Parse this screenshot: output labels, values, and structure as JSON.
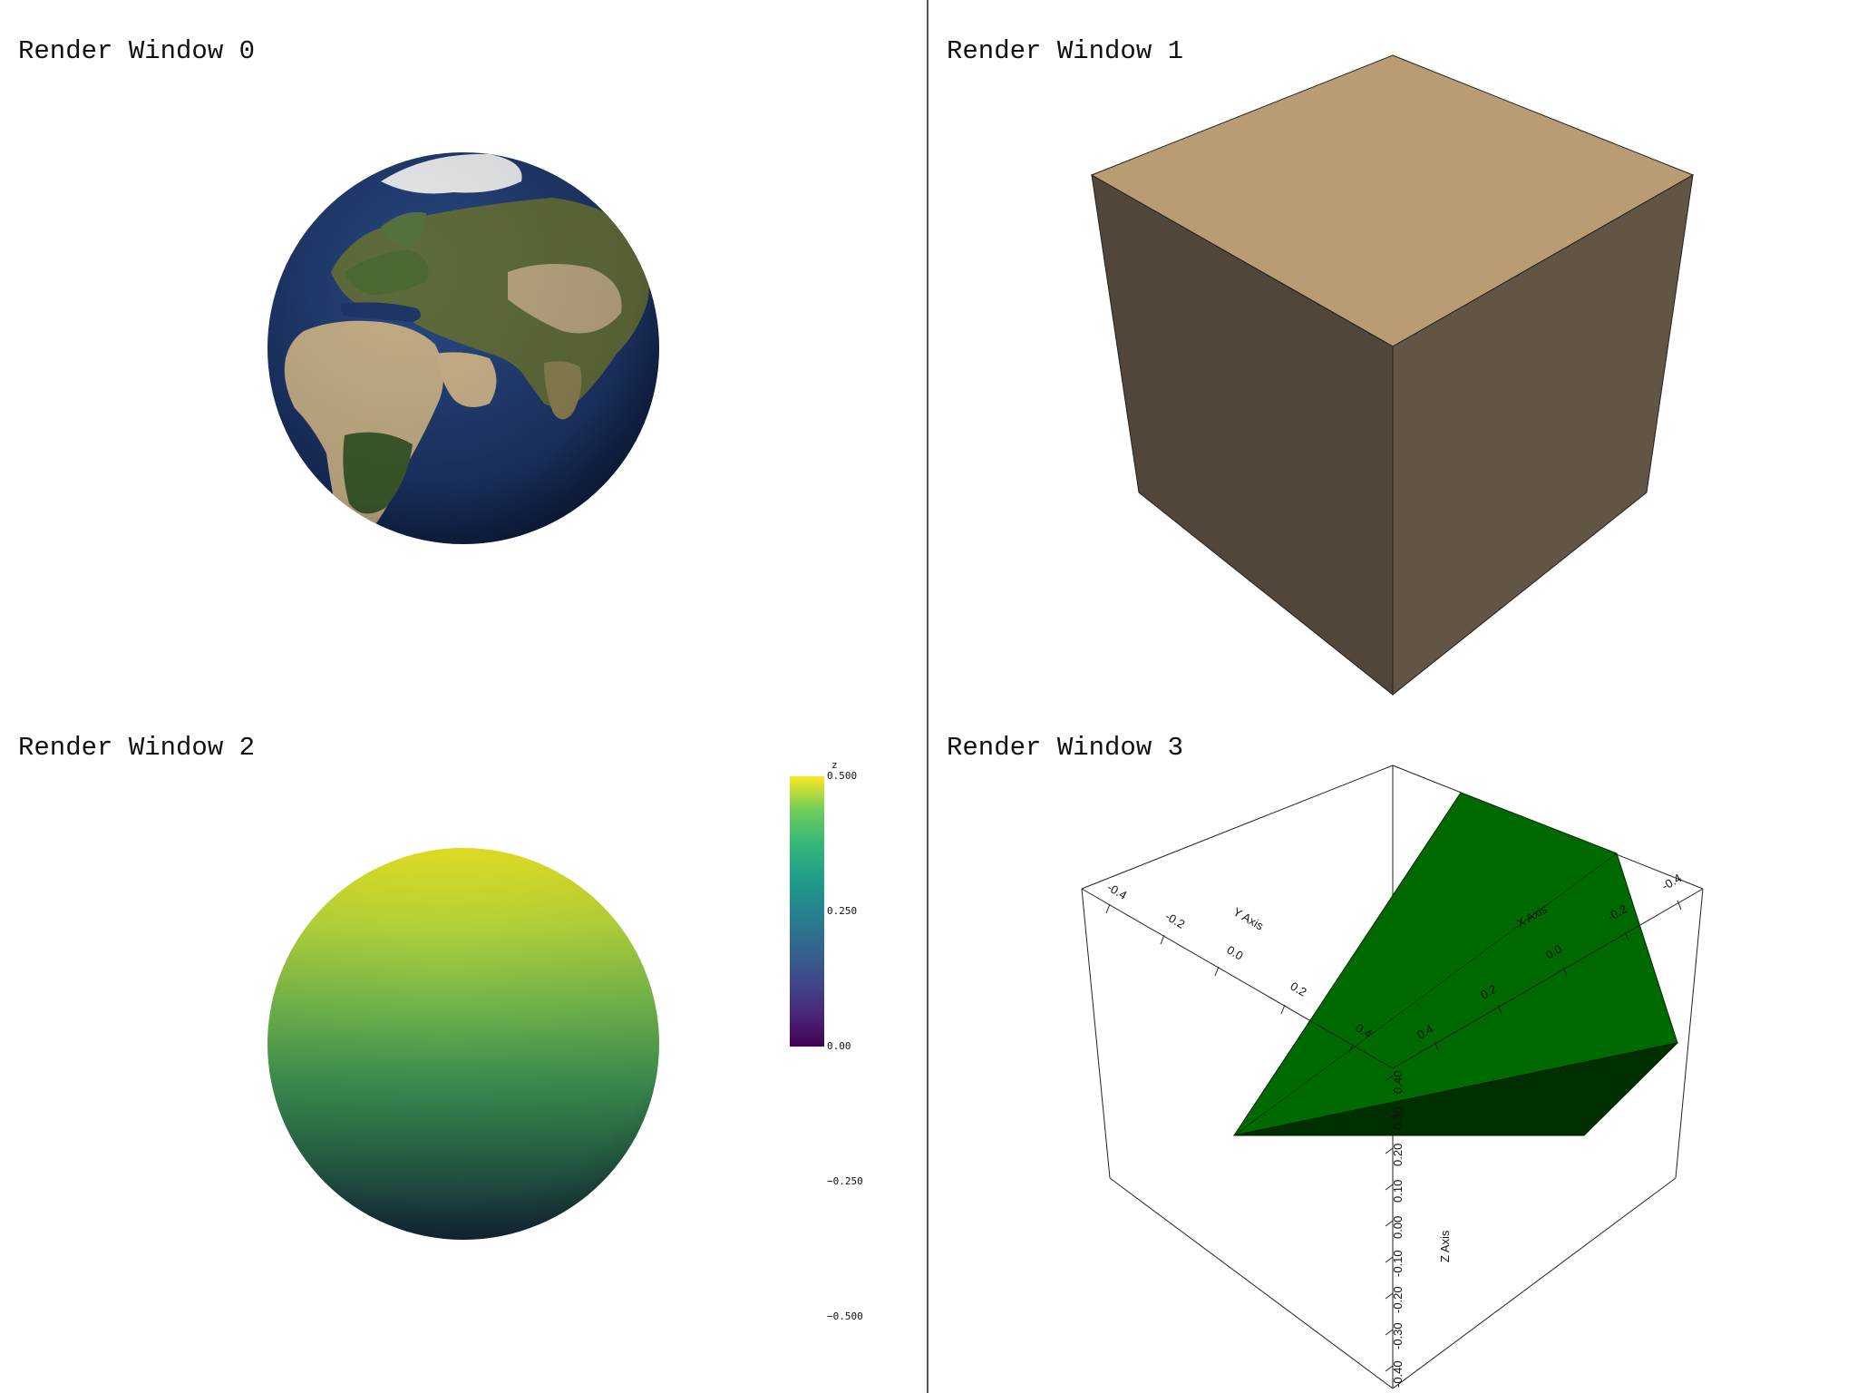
{
  "viewports": [
    {
      "title": "Render Window 0"
    },
    {
      "title": "Render Window 1"
    },
    {
      "title": "Render Window 2"
    },
    {
      "title": "Render Window 3"
    }
  ],
  "colorbar": {
    "title": "z",
    "ticks": [
      "0.500",
      "0.250",
      "0.00",
      "−0.250",
      "−0.500"
    ],
    "colormap": "viridis"
  },
  "axes": {
    "x_label": "X Axis",
    "y_label": "Y Axis",
    "z_label": "Z Axis",
    "y_ticks": [
      "-0.4",
      "-0.2",
      "0.0",
      "0.2",
      "0.4"
    ],
    "x_ticks": [
      "-0.4",
      "-0.2",
      "0.0",
      "0.2",
      "0.4"
    ],
    "z_ticks": [
      "0.40",
      "0.30",
      "0.20",
      "0.10",
      "0.00",
      "-0.10",
      "-0.20",
      "-0.30",
      "-0.40"
    ]
  },
  "colors": {
    "background": "#ffffff",
    "divider": "#555555",
    "cube_top": "#b99c73",
    "cube_left": "#52463a",
    "cube_right": "#635543",
    "wedge_light": "#006a00",
    "wedge_dark": "#003000",
    "ocean": "#1f3668"
  }
}
